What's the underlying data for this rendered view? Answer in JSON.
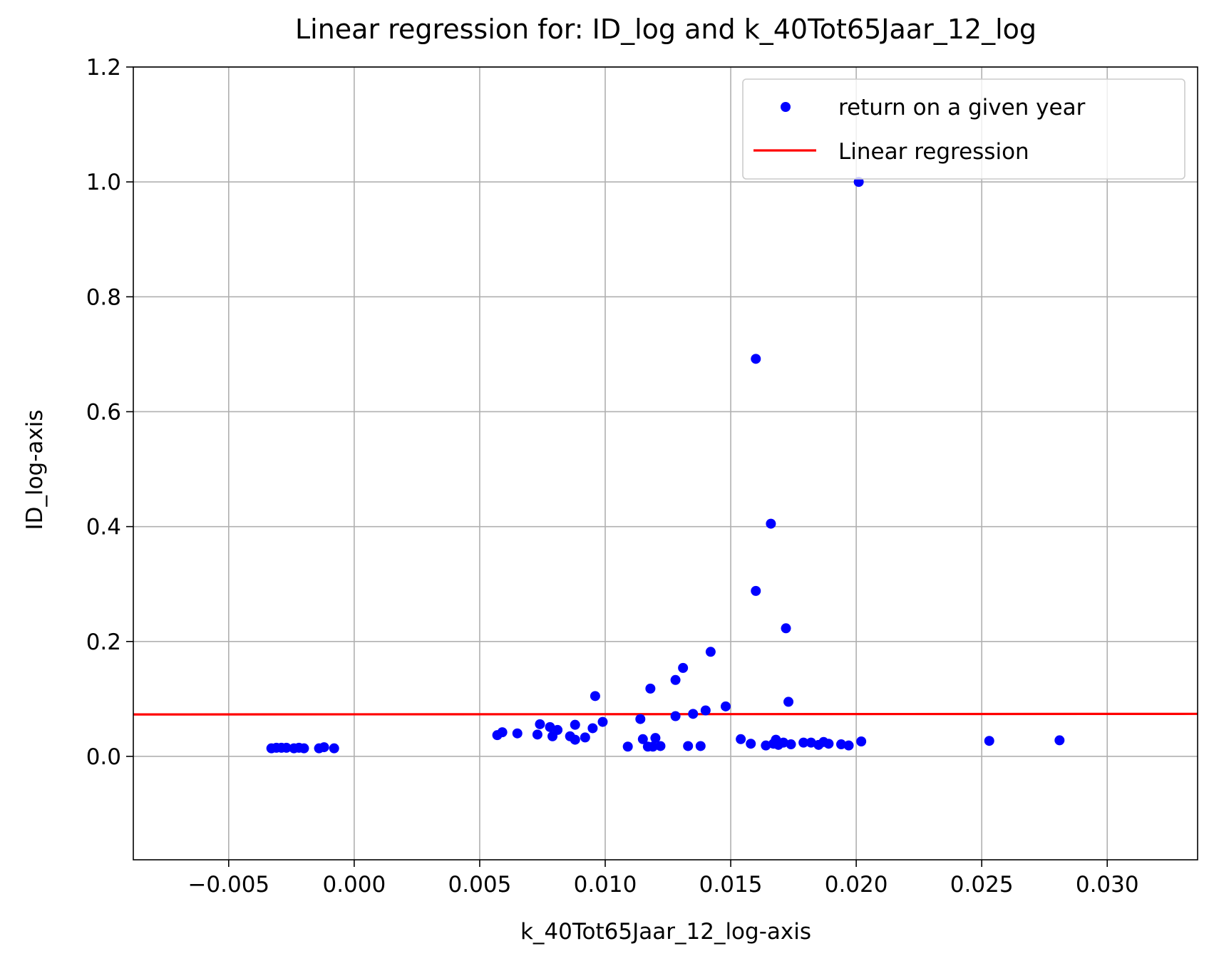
{
  "chart_data": {
    "type": "scatter",
    "title": "Linear regression for: ID_log and k_40Tot65Jaar_12_log",
    "xlabel": "k_40Tot65Jaar_12_log-axis",
    "ylabel": "ID_log-axis",
    "xlim": [
      -0.0088,
      0.0336
    ],
    "ylim": [
      -0.18,
      1.2
    ],
    "grid": true,
    "legend_position": "top-right",
    "x_ticks": [
      {
        "value": -0.005,
        "label": "−0.005"
      },
      {
        "value": 0.0,
        "label": "0.000"
      },
      {
        "value": 0.005,
        "label": "0.005"
      },
      {
        "value": 0.01,
        "label": "0.010"
      },
      {
        "value": 0.015,
        "label": "0.015"
      },
      {
        "value": 0.02,
        "label": "0.020"
      },
      {
        "value": 0.025,
        "label": "0.025"
      },
      {
        "value": 0.03,
        "label": "0.030"
      }
    ],
    "y_ticks": [
      {
        "value": 0.0,
        "label": "0.0"
      },
      {
        "value": 0.2,
        "label": "0.2"
      },
      {
        "value": 0.4,
        "label": "0.4"
      },
      {
        "value": 0.6,
        "label": "0.6"
      },
      {
        "value": 0.8,
        "label": "0.8"
      },
      {
        "value": 1.0,
        "label": "1.0"
      },
      {
        "value": 1.2,
        "label": "1.2"
      }
    ],
    "series": [
      {
        "name": "return on a given year",
        "kind": "scatter",
        "color": "#0000ff",
        "points": [
          [
            -0.0033,
            0.014
          ],
          [
            -0.0031,
            0.015
          ],
          [
            -0.0029,
            0.015
          ],
          [
            -0.0027,
            0.015
          ],
          [
            -0.0024,
            0.014
          ],
          [
            -0.0022,
            0.015
          ],
          [
            -0.002,
            0.014
          ],
          [
            -0.0014,
            0.014
          ],
          [
            -0.0012,
            0.016
          ],
          [
            -0.0008,
            0.014
          ],
          [
            0.0057,
            0.037
          ],
          [
            0.0059,
            0.042
          ],
          [
            0.0065,
            0.04
          ],
          [
            0.0073,
            0.038
          ],
          [
            0.0074,
            0.056
          ],
          [
            0.0078,
            0.051
          ],
          [
            0.0079,
            0.035
          ],
          [
            0.0081,
            0.046
          ],
          [
            0.0086,
            0.035
          ],
          [
            0.0088,
            0.055
          ],
          [
            0.0088,
            0.029
          ],
          [
            0.0092,
            0.033
          ],
          [
            0.0095,
            0.049
          ],
          [
            0.0096,
            0.105
          ],
          [
            0.0099,
            0.06
          ],
          [
            0.0109,
            0.017
          ],
          [
            0.0114,
            0.065
          ],
          [
            0.0115,
            0.03
          ],
          [
            0.0117,
            0.017
          ],
          [
            0.0118,
            0.118
          ],
          [
            0.0119,
            0.017
          ],
          [
            0.012,
            0.032
          ],
          [
            0.0122,
            0.018
          ],
          [
            0.0128,
            0.07
          ],
          [
            0.0128,
            0.133
          ],
          [
            0.0131,
            0.154
          ],
          [
            0.0133,
            0.018
          ],
          [
            0.0135,
            0.074
          ],
          [
            0.0138,
            0.018
          ],
          [
            0.014,
            0.08
          ],
          [
            0.0142,
            0.182
          ],
          [
            0.0148,
            0.087
          ],
          [
            0.0154,
            0.03
          ],
          [
            0.0158,
            0.022
          ],
          [
            0.016,
            0.692
          ],
          [
            0.016,
            0.288
          ],
          [
            0.0164,
            0.019
          ],
          [
            0.0166,
            0.405
          ],
          [
            0.0167,
            0.022
          ],
          [
            0.0168,
            0.029
          ],
          [
            0.0169,
            0.02
          ],
          [
            0.0171,
            0.024
          ],
          [
            0.0172,
            0.223
          ],
          [
            0.0173,
            0.095
          ],
          [
            0.0174,
            0.021
          ],
          [
            0.0179,
            0.024
          ],
          [
            0.0182,
            0.024
          ],
          [
            0.0185,
            0.02
          ],
          [
            0.0187,
            0.025
          ],
          [
            0.0189,
            0.022
          ],
          [
            0.0194,
            0.021
          ],
          [
            0.0197,
            0.019
          ],
          [
            0.0201,
            1.0
          ],
          [
            0.0202,
            0.026
          ],
          [
            0.0253,
            0.027
          ],
          [
            0.0281,
            0.028
          ]
        ]
      },
      {
        "name": "Linear regression",
        "kind": "line",
        "color": "#ff0000",
        "points": [
          [
            -0.0088,
            0.073
          ],
          [
            0.0336,
            0.074
          ]
        ]
      }
    ]
  }
}
